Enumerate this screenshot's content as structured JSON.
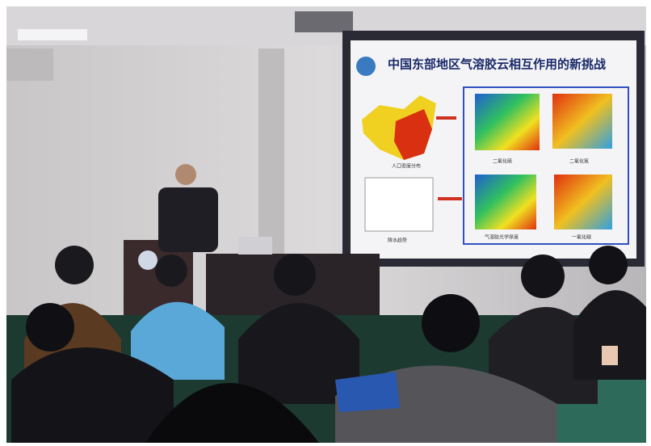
{
  "slide": {
    "title": "中国东部地区气溶胶云相互作用的新挑战",
    "captions": [
      "人口密度分布",
      "降水趋势",
      "二氧化硫",
      "二氧化氮",
      "气溶胶光学厚度",
      "一氧化碳"
    ]
  }
}
